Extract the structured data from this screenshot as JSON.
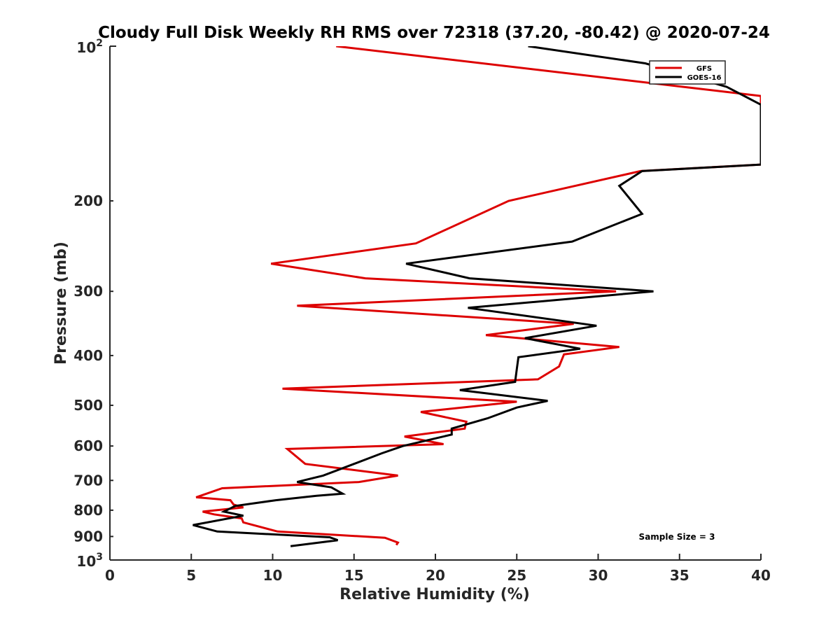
{
  "chart_data": {
    "type": "line",
    "title": "Cloudy Full Disk Weekly RH RMS over 72318 (37.20, -80.42) @ 2020-07-24",
    "xlabel": "Relative Humidity (%)",
    "ylabel": "Pressure (mb)",
    "xlim": [
      0,
      40
    ],
    "ylim": [
      100,
      1000
    ],
    "yscale": "log",
    "y_reversed": true,
    "grid": false,
    "legend_position": "top-right",
    "x_ticks": [
      0,
      5,
      10,
      15,
      20,
      25,
      30,
      35,
      40
    ],
    "x_tick_labels": [
      "0",
      "5",
      "10",
      "15",
      "20",
      "25",
      "30",
      "35",
      "40"
    ],
    "y_ticks": [
      100,
      200,
      300,
      400,
      500,
      600,
      700,
      800,
      900,
      1000
    ],
    "y_tick_labels": [
      {
        "base": "10",
        "exp": "2"
      },
      {
        "text": "200"
      },
      {
        "text": "300"
      },
      {
        "text": "400"
      },
      {
        "text": "500"
      },
      {
        "text": "600"
      },
      {
        "text": "700"
      },
      {
        "text": "800"
      },
      {
        "text": "900"
      },
      {
        "base": "10",
        "exp": "3"
      }
    ],
    "annotation": "Sample Size = 3",
    "series": [
      {
        "name": "GFS",
        "color": "#dd0000",
        "points": [
          [
            13.9,
            100
          ],
          [
            40,
            125
          ],
          [
            40,
            170
          ],
          [
            32.6,
            175
          ],
          [
            24.5,
            200
          ],
          [
            18.8,
            242
          ],
          [
            9.9,
            265
          ],
          [
            15.7,
            283
          ],
          [
            31.1,
            300
          ],
          [
            11.5,
            320
          ],
          [
            28.5,
            347
          ],
          [
            23.1,
            365
          ],
          [
            31.3,
            385
          ],
          [
            27.9,
            398
          ],
          [
            27.6,
            420
          ],
          [
            26.3,
            445
          ],
          [
            10.6,
            464
          ],
          [
            25.0,
            492
          ],
          [
            19.1,
            515
          ],
          [
            21.9,
            538
          ],
          [
            21.8,
            555
          ],
          [
            18.1,
            575
          ],
          [
            20.5,
            595
          ],
          [
            10.9,
            608
          ],
          [
            12.0,
            650
          ],
          [
            17.7,
            685
          ],
          [
            15.3,
            705
          ],
          [
            6.9,
            725
          ],
          [
            5.3,
            755
          ],
          [
            7.4,
            765
          ],
          [
            7.6,
            780
          ],
          [
            8.2,
            790
          ],
          [
            5.7,
            805
          ],
          [
            6.4,
            815
          ],
          [
            8.1,
            830
          ],
          [
            8.2,
            845
          ],
          [
            10.3,
            880
          ],
          [
            16.9,
            905
          ],
          [
            17.7,
            925
          ],
          [
            17.6,
            935
          ]
        ]
      },
      {
        "name": "GOES-16",
        "color": "#000000",
        "points": [
          [
            25.7,
            100
          ],
          [
            32.9,
            108
          ],
          [
            37.9,
            120
          ],
          [
            40,
            130
          ],
          [
            40,
            170
          ],
          [
            32.7,
            175
          ],
          [
            31.3,
            187
          ],
          [
            32.7,
            212
          ],
          [
            28.4,
            240
          ],
          [
            18.2,
            265
          ],
          [
            22.1,
            283
          ],
          [
            33.4,
            300
          ],
          [
            22.0,
            323
          ],
          [
            29.9,
            350
          ],
          [
            25.5,
            370
          ],
          [
            28.9,
            388
          ],
          [
            25.1,
            403
          ],
          [
            25.0,
            425
          ],
          [
            24.9,
            450
          ],
          [
            21.5,
            467
          ],
          [
            26.9,
            490
          ],
          [
            25.0,
            505
          ],
          [
            23.2,
            530
          ],
          [
            21.0,
            555
          ],
          [
            21.0,
            570
          ],
          [
            18.0,
            600
          ],
          [
            16.7,
            620
          ],
          [
            15.0,
            650
          ],
          [
            13.1,
            685
          ],
          [
            11.5,
            705
          ],
          [
            13.6,
            722
          ],
          [
            14.3,
            743
          ],
          [
            12.7,
            750
          ],
          [
            10.2,
            765
          ],
          [
            7.7,
            785
          ],
          [
            7.0,
            805
          ],
          [
            8.2,
            820
          ],
          [
            5.1,
            855
          ],
          [
            6.6,
            880
          ],
          [
            13.5,
            903
          ],
          [
            14.0,
            915
          ],
          [
            11.1,
            940
          ]
        ]
      }
    ]
  }
}
